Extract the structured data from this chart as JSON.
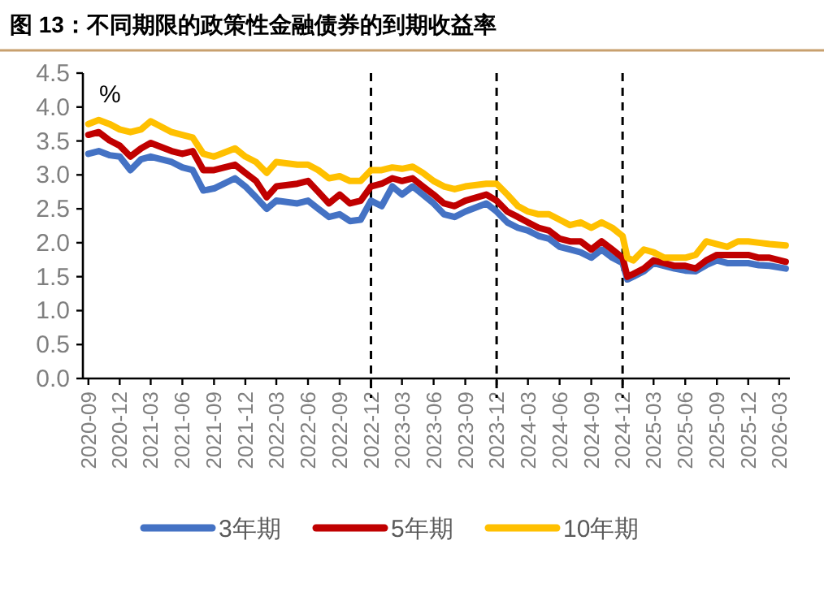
{
  "chart_data": {
    "type": "line",
    "title": "图 13：不同期限的政策性金融债券的到期收益率",
    "ylabel": "%",
    "legend": "bottom",
    "line_style": "solid",
    "x": [
      "2020-09",
      "2020-10",
      "2020-11",
      "2020-12",
      "2021-01",
      "2021-02",
      "2021-03",
      "2021-05",
      "2021-06",
      "2021-07",
      "2021-08",
      "2021-09",
      "2021-11",
      "2021-12",
      "2022-01",
      "2022-02",
      "2022-03",
      "2022-05",
      "2022-06",
      "2022-07",
      "2022-08",
      "2022-09",
      "2022-10",
      "2022-11",
      "2022-12",
      "2023-01",
      "2023-02",
      "2023-03",
      "2023-04",
      "2023-05",
      "2023-06",
      "2023-07",
      "2023-08",
      "2023-09",
      "2023-11",
      "2023-12",
      "2024-01",
      "2024-02",
      "2024-03",
      "2024-04",
      "2024-05",
      "2024-06",
      "2024-07",
      "2024-08",
      "2024-09",
      "2024-10",
      "2024-11",
      "2024-12",
      "2024-12-15",
      "2025-01",
      "2025-02",
      "2025-03",
      "2025-04",
      "2025-05",
      "2025-06",
      "2025-07",
      "2025-08",
      "2025-09",
      "2025-10",
      "2025-11",
      "2025-12",
      "2026-01",
      "2026-02",
      "2026-03-20"
    ],
    "series": [
      {
        "name": "3年期",
        "color": "#4472c4",
        "values": [
          3.31,
          3.35,
          3.29,
          3.27,
          3.07,
          3.23,
          3.27,
          3.19,
          3.11,
          3.07,
          2.77,
          2.8,
          2.95,
          2.83,
          2.67,
          2.5,
          2.62,
          2.58,
          2.62,
          2.5,
          2.38,
          2.42,
          2.32,
          2.34,
          2.62,
          2.54,
          2.83,
          2.71,
          2.83,
          2.71,
          2.58,
          2.42,
          2.38,
          2.46,
          2.58,
          2.46,
          2.3,
          2.22,
          2.18,
          2.1,
          2.06,
          1.94,
          1.9,
          1.86,
          1.78,
          1.9,
          1.78,
          1.7,
          1.46,
          1.5,
          1.58,
          1.7,
          1.66,
          1.62,
          1.59,
          1.58,
          1.67,
          1.74,
          1.7,
          1.7,
          1.7,
          1.67,
          1.66,
          1.62
        ]
      },
      {
        "name": "5年期",
        "color": "#c00000",
        "values": [
          3.59,
          3.63,
          3.51,
          3.43,
          3.27,
          3.39,
          3.47,
          3.35,
          3.31,
          3.35,
          3.07,
          3.07,
          3.15,
          3.03,
          2.91,
          2.67,
          2.83,
          2.87,
          2.91,
          2.75,
          2.58,
          2.71,
          2.58,
          2.62,
          2.83,
          2.87,
          2.95,
          2.91,
          2.95,
          2.83,
          2.71,
          2.58,
          2.54,
          2.62,
          2.71,
          2.62,
          2.46,
          2.38,
          2.3,
          2.22,
          2.18,
          2.06,
          2.02,
          2.02,
          1.9,
          2.02,
          1.9,
          1.78,
          1.5,
          1.54,
          1.62,
          1.74,
          1.7,
          1.66,
          1.66,
          1.62,
          1.74,
          1.82,
          1.82,
          1.82,
          1.82,
          1.78,
          1.78,
          1.72
        ]
      },
      {
        "name": "10年期",
        "color": "#ffc000",
        "values": [
          3.75,
          3.81,
          3.75,
          3.67,
          3.63,
          3.67,
          3.79,
          3.63,
          3.59,
          3.55,
          3.31,
          3.27,
          3.39,
          3.27,
          3.19,
          3.03,
          3.19,
          3.15,
          3.15,
          3.07,
          2.95,
          2.98,
          2.91,
          2.91,
          3.07,
          3.07,
          3.11,
          3.09,
          3.12,
          3.03,
          2.91,
          2.83,
          2.79,
          2.83,
          2.87,
          2.87,
          2.71,
          2.54,
          2.46,
          2.42,
          2.42,
          2.34,
          2.26,
          2.3,
          2.22,
          2.3,
          2.22,
          2.1,
          1.78,
          1.74,
          1.9,
          1.86,
          1.78,
          1.78,
          1.78,
          1.82,
          2.02,
          1.98,
          1.94,
          2.02,
          2.02,
          2.0,
          1.98,
          1.96
        ]
      }
    ],
    "xlim": [
      "2020-08-16",
      "2026-04-01"
    ],
    "xticks": [
      "2020-09",
      "2020-12",
      "2021-03",
      "2021-06",
      "2021-09",
      "2021-12",
      "2022-03",
      "2022-06",
      "2022-09",
      "2022-12",
      "2023-03",
      "2023-06",
      "2023-09",
      "2023-12",
      "2024-03",
      "2024-06",
      "2024-09",
      "2024-12",
      "2025-03",
      "2025-06",
      "2025-09",
      "2025-12",
      "2026-03"
    ],
    "ylim": [
      0,
      4.5
    ],
    "yticks": [
      {
        "value": 0,
        "label": "0.0"
      },
      {
        "value": 0.5,
        "label": "0.5"
      },
      {
        "value": 1,
        "label": "1.0"
      },
      {
        "value": 1.5,
        "label": "1.5"
      },
      {
        "value": 2,
        "label": "2.0"
      },
      {
        "value": 2.5,
        "label": "2.5"
      },
      {
        "value": 3,
        "label": "3.0"
      },
      {
        "value": 3.5,
        "label": "3.5"
      },
      {
        "value": 4,
        "label": "4.0"
      },
      {
        "value": 4.5,
        "label": "4.5"
      }
    ],
    "ref_lines": [
      {
        "axis": "x",
        "value": "2022-12",
        "line_style": "dashed",
        "color": "#000000"
      },
      {
        "axis": "x",
        "value": "2023-12",
        "line_style": "dashed",
        "color": "#000000"
      },
      {
        "axis": "x",
        "value": "2024-12",
        "line_style": "dashed",
        "color": "#000000"
      }
    ]
  }
}
